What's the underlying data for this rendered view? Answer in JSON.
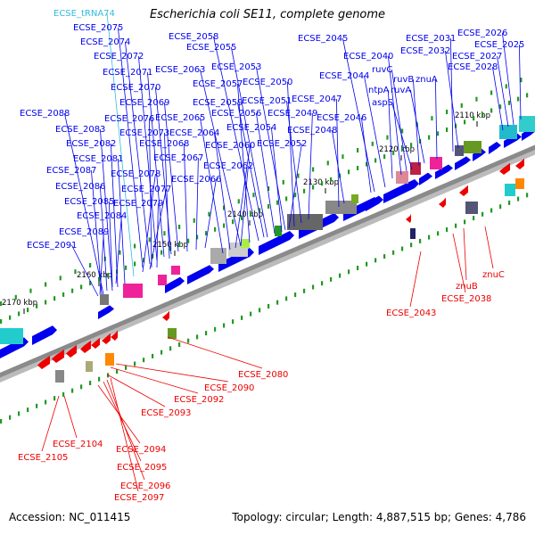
{
  "title": "Escherichia coli SE11, complete genome",
  "footer": {
    "accession": "Accession: NC_011415",
    "topology": "Topology: circular; Length: 4,887,515 bp; Genes: 4,786"
  },
  "colors": {
    "forward_gene": "#0000ee",
    "reverse_gene": "#ee0000",
    "trna": "#33bbdd",
    "backbone": "#888888"
  },
  "ticks": [
    "2110 kbp",
    "2120 kbp",
    "2130 kbp",
    "2140 kbp",
    "2150 kbp",
    "2160 kbp",
    "2170 kbp"
  ],
  "forward_labels": [
    {
      "text": "ECSE_tRNA74",
      "trna": true
    },
    "ECSE_2075",
    "ECSE_2074",
    "ECSE_2072",
    "ECSE_2071",
    "ECSE_2070",
    "ECSE_2069",
    "ECSE_2076",
    "ECSE_2073",
    "ECSE_2068",
    "ECSE_2067",
    "ECSE_2066",
    "ECSE_2078",
    "ECSE_2077",
    "ECSE_2079",
    "ECSE_2088",
    "ECSE_2083",
    "ECSE_2082",
    "ECSE_2081",
    "ECSE_2087",
    "ECSE_2086",
    "ECSE_2085",
    "ECSE_2084",
    "ECSE_2089",
    "ECSE_2091",
    "ECSE_2058",
    "ECSE_2055",
    "ECSE_2063",
    "ECSE_2057",
    "ECSE_2065",
    "ECSE_2059",
    "ECSE_2064",
    "ECSE_2056",
    "ECSE_2060",
    "ECSE_2062",
    "ECSE_2053",
    "ECSE_2050",
    "ECSE_2051",
    "ECSE_2054",
    "ECSE_2049",
    "ECSE_2052",
    "ECSE_2045",
    "ECSE_2047",
    "ECSE_2048",
    "ECSE_2044",
    "ECSE_2046",
    "ECSE_2040",
    "ruvC",
    "ntpA",
    "aspS",
    "ruvB",
    "ruvA",
    "znuA",
    "ECSE_2031",
    "ECSE_2032",
    "ECSE_2026",
    "ECSE_2025",
    "ECSE_2027",
    "ECSE_2028"
  ],
  "reverse_labels": [
    "ECSE_2080",
    "ECSE_2090",
    "ECSE_2092",
    "ECSE_2093",
    "ECSE_2104",
    "ECSE_2105",
    "ECSE_2094",
    "ECSE_2095",
    "ECSE_2096",
    "ECSE_2097",
    "ECSE_2043",
    "ECSE_2038",
    "znuB",
    "znuC"
  ]
}
